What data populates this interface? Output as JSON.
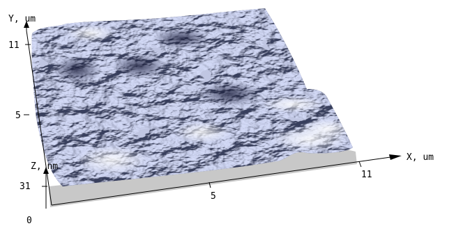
{
  "axes": {
    "y": {
      "label": "Y, um",
      "ticks": [
        "11",
        "5"
      ]
    },
    "x": {
      "label": "X, um",
      "ticks": [
        "5",
        "11"
      ]
    },
    "z": {
      "label": "Z, nm",
      "ticks": [
        "31",
        "0"
      ]
    }
  },
  "colors": {
    "surface_dark": "#1c2042",
    "surface_mid": "#4e5378",
    "surface_light": "#eceef2",
    "base_wall": "#c8c8c8",
    "axis": "#000000",
    "background": "#ffffff"
  }
}
